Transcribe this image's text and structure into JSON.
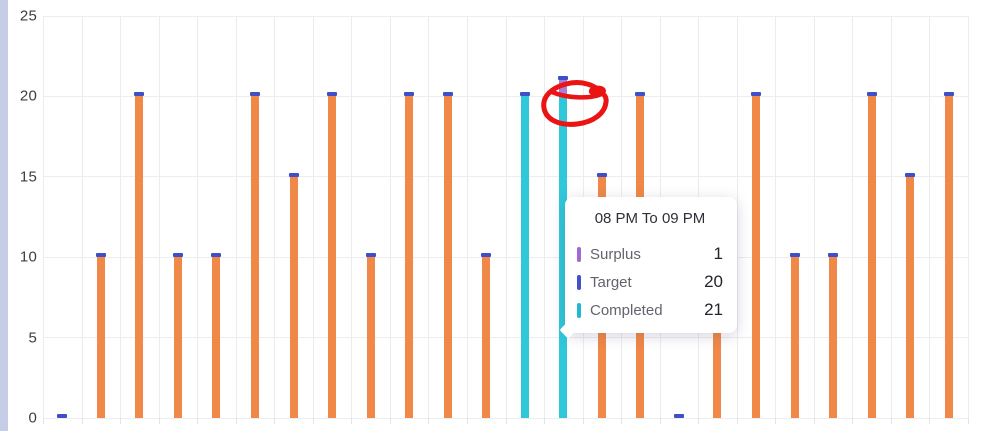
{
  "page": {
    "background_color": "#ffffff",
    "left_strip_color": "#c6cde6"
  },
  "y_axis": {
    "tick_labels": [
      "0",
      "5",
      "10",
      "15",
      "20",
      "25"
    ],
    "label_color": "#3d3d47"
  },
  "chart_data": {
    "type": "bar",
    "title": "",
    "xlabel": "",
    "ylabel": "",
    "ylim": [
      0,
      25
    ],
    "yticks": [
      0,
      5,
      10,
      15,
      20,
      25
    ],
    "grid": true,
    "legend_position": "tooltip-only",
    "slot_count": 24,
    "series": [
      {
        "name": "Target",
        "color": "#f08848",
        "values": [
          0,
          10,
          20,
          10,
          10,
          20,
          15,
          20,
          10,
          20,
          20,
          10,
          20,
          20,
          15,
          20,
          0,
          10,
          20,
          10,
          10,
          20,
          15,
          20
        ]
      },
      {
        "name": "Completed",
        "color": "#2fc8db",
        "values": [
          0,
          0,
          0,
          0,
          0,
          0,
          0,
          0,
          0,
          0,
          0,
          0,
          20,
          21,
          0,
          0,
          0,
          0,
          0,
          0,
          0,
          0,
          0,
          0
        ]
      },
      {
        "name": "Surplus",
        "color": "#a87fe0",
        "values": [
          0,
          0,
          0,
          0,
          0,
          0,
          0,
          0,
          0,
          0,
          0,
          0,
          0,
          1,
          0,
          0,
          0,
          0,
          0,
          0,
          0,
          0,
          0,
          0
        ]
      }
    ],
    "target_cap_color": "#3f4fc8",
    "hovered_slot_index": 13
  },
  "tooltip": {
    "title": "08 PM To 09 PM",
    "rows": [
      {
        "label": "Surplus",
        "value": "1",
        "color": "#a06ad4"
      },
      {
        "label": "Target",
        "value": "20",
        "color": "#4150cb"
      },
      {
        "label": "Completed",
        "value": "21",
        "color": "#20b9cf"
      }
    ]
  },
  "annotation": {
    "shape": "freehand-circle",
    "color": "#ea1414"
  }
}
